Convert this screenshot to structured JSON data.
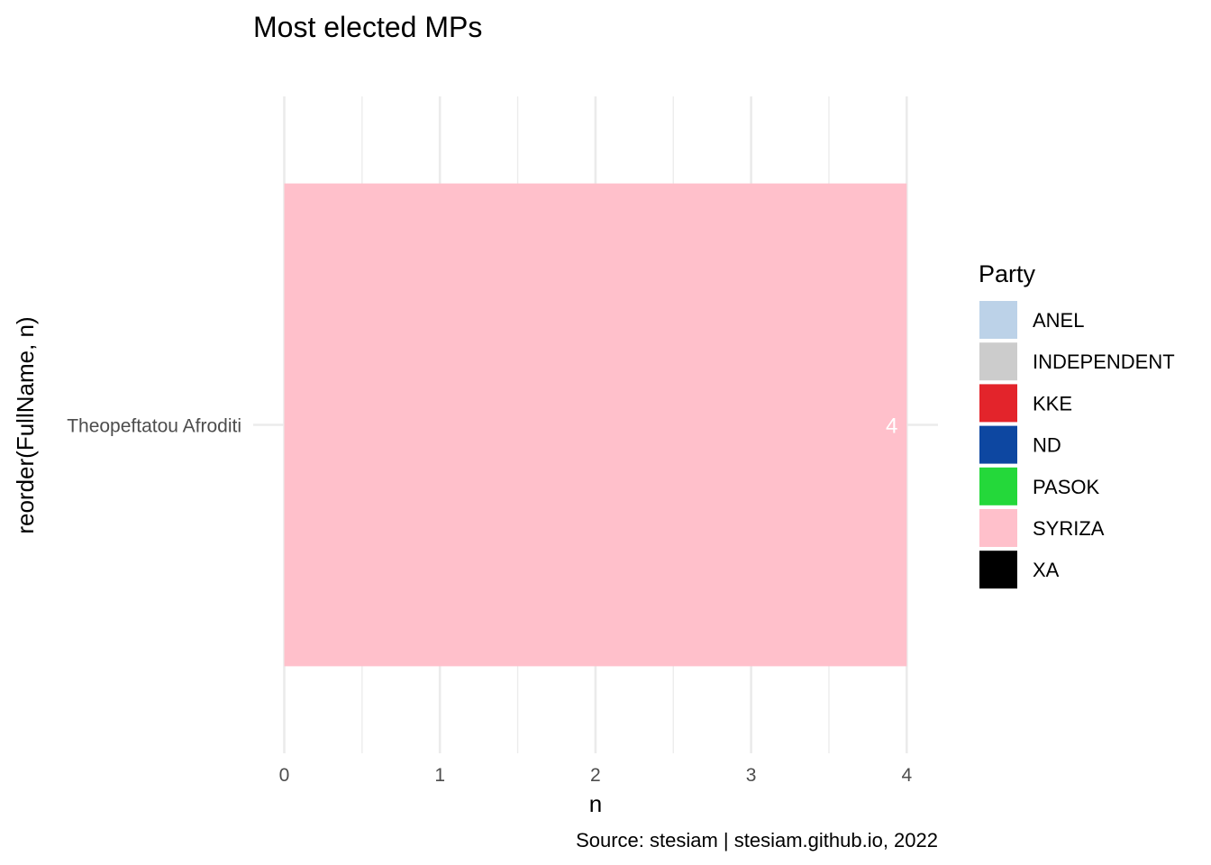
{
  "chart_data": {
    "type": "bar",
    "orientation": "horizontal",
    "title": "Most elected MPs",
    "xlabel": "n",
    "ylabel": "reorder(FullName, n)",
    "caption": "Source: stesiam | stesiam.github.io, 2022",
    "categories": [
      "Theopeftatou Afroditi"
    ],
    "series": [
      {
        "category": "Theopeftatou Afroditi",
        "value": 4,
        "party": "SYRIZA",
        "label": "4"
      }
    ],
    "xlim": [
      0,
      4.2
    ],
    "xticks": [
      0,
      1,
      2,
      3,
      4
    ],
    "grid": true,
    "legend": {
      "title": "Party",
      "position": "right",
      "items": [
        {
          "label": "ANEL",
          "color": "#bcd2e8"
        },
        {
          "label": "INDEPENDENT",
          "color": "#cccccc"
        },
        {
          "label": "KKE",
          "color": "#e3242b"
        },
        {
          "label": "ND",
          "color": "#0d47a1"
        },
        {
          "label": "PASOK",
          "color": "#24d83a"
        },
        {
          "label": "SYRIZA",
          "color": "#ffc0cb"
        },
        {
          "label": "XA",
          "color": "#000000"
        }
      ]
    }
  }
}
